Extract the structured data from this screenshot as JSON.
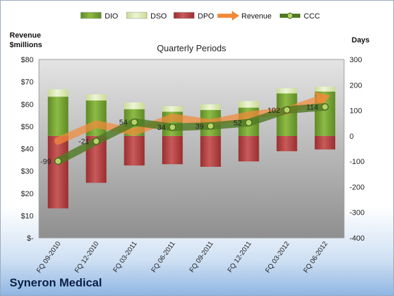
{
  "company": "Syneron Medical",
  "chart_data": {
    "type": "bar",
    "title": "Quarterly Periods",
    "ylabel_left": "Revenue $millions",
    "ylabel_right": "Days",
    "categories": [
      "FQ 09-2010",
      "FQ 12-2010",
      "FQ 03-2011",
      "FQ 06-2011",
      "FQ 09-2011",
      "FQ 12-2011",
      "FQ 03-2012",
      "FQ 06-2012"
    ],
    "left_axis": {
      "min": 0,
      "max": 80,
      "step": 10,
      "tick_labels": [
        "$-",
        "$10",
        "$20",
        "$30",
        "$40",
        "$50",
        "$60",
        "$70",
        "$80"
      ]
    },
    "right_axis": {
      "min": -400,
      "max": 300,
      "step": 100,
      "tick_labels": [
        "-400",
        "-300",
        "-200",
        "-100",
        "0",
        "100",
        "200",
        "300"
      ]
    },
    "series": [
      {
        "name": "DIO",
        "kind": "stacked-bar",
        "axis": "right",
        "color": "#6b9a2c",
        "values": [
          154,
          139,
          105,
          95,
          102,
          111,
          167,
          174
        ]
      },
      {
        "name": "DSO",
        "kind": "stacked-bar",
        "axis": "right",
        "color": "#dce9b4",
        "values": [
          29,
          24,
          26,
          22,
          22,
          26,
          20,
          19
        ]
      },
      {
        "name": "DPO",
        "kind": "bar-below",
        "axis": "right",
        "color": "#b23a3a",
        "values": [
          -284,
          -184,
          -116,
          -111,
          -121,
          -100,
          -60,
          -53
        ]
      },
      {
        "name": "Revenue",
        "kind": "line",
        "axis": "left",
        "color": "#f28a3a",
        "values": [
          43.5,
          51,
          47.5,
          54,
          51.5,
          55,
          57,
          63
        ]
      },
      {
        "name": "CCC",
        "kind": "line",
        "axis": "right",
        "color": "#4f7a24",
        "values": [
          -99,
          -21,
          54,
          34,
          39,
          52,
          102,
          114
        ]
      }
    ],
    "data_labels": [
      "-99",
      "-21",
      "54",
      "34",
      "39",
      "52",
      "102",
      "114"
    ],
    "legend": {
      "position": "top",
      "entries": [
        "DIO",
        "DSO",
        "DPO",
        "Revenue",
        "CCC"
      ]
    },
    "grid": false
  }
}
